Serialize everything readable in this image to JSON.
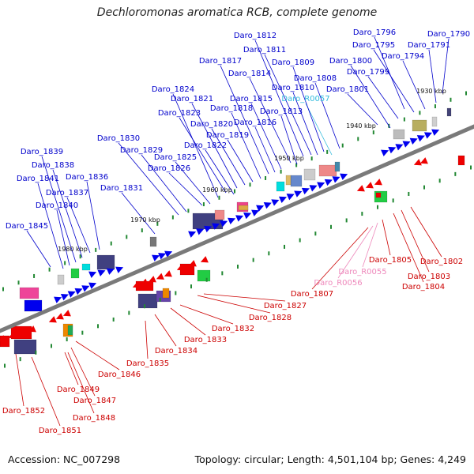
{
  "title": "Dechloromonas aromatica RCB, complete genome",
  "footer": {
    "accession": "Accession: NC_007298",
    "summary": "Topology: circular; Length: 4,501,104 bp; Genes: 4,249"
  },
  "colors": {
    "forward_label": "#0000cc",
    "reverse_label": "#cc0000",
    "forward_rna_label": "#33bbdd",
    "reverse_rna_label": "#ee88bb",
    "forward_gene": "#0000ee",
    "reverse_gene": "#ee0000",
    "backbone": "#777777"
  },
  "scale_ticks": [
    "1930 kbp",
    "1940 kbp",
    "1950 kbp",
    "1960 kbp",
    "1970 kbp",
    "1980 kbp"
  ],
  "forward_labels": [
    "Daro_1790",
    "Daro_1791",
    "Daro_1794",
    "Daro_1795",
    "Daro_1796",
    "Daro_1799",
    "Daro_1800",
    "Daro_1801",
    "Daro_1808",
    "Daro_R0057",
    "Daro_1809",
    "Daro_1810",
    "Daro_1811",
    "Daro_1812",
    "Daro_1813",
    "Daro_1814",
    "Daro_1815",
    "Daro_1816",
    "Daro_1817",
    "Daro_1818",
    "Daro_1819",
    "Daro_1820",
    "Daro_1821",
    "Daro_1822",
    "Daro_1823",
    "Daro_1824",
    "Daro_1825",
    "Daro_1826",
    "Daro_1829",
    "Daro_1830",
    "Daro_1831",
    "Daro_1836",
    "Daro_1837",
    "Daro_1838",
    "Daro_1839",
    "Daro_1840",
    "Daro_1841",
    "Daro_1845"
  ],
  "reverse_labels": [
    "Daro_1802",
    "Daro_1803",
    "Daro_1804",
    "Daro_1805",
    "Daro_R0055",
    "Daro_R0056",
    "Daro_1807",
    "Daro_1827",
    "Daro_1828",
    "Daro_1832",
    "Daro_1833",
    "Daro_1834",
    "Daro_1835",
    "Daro_1846",
    "Daro_1847",
    "Daro_1848",
    "Daro_1849",
    "Daro_1851",
    "Daro_1852"
  ]
}
